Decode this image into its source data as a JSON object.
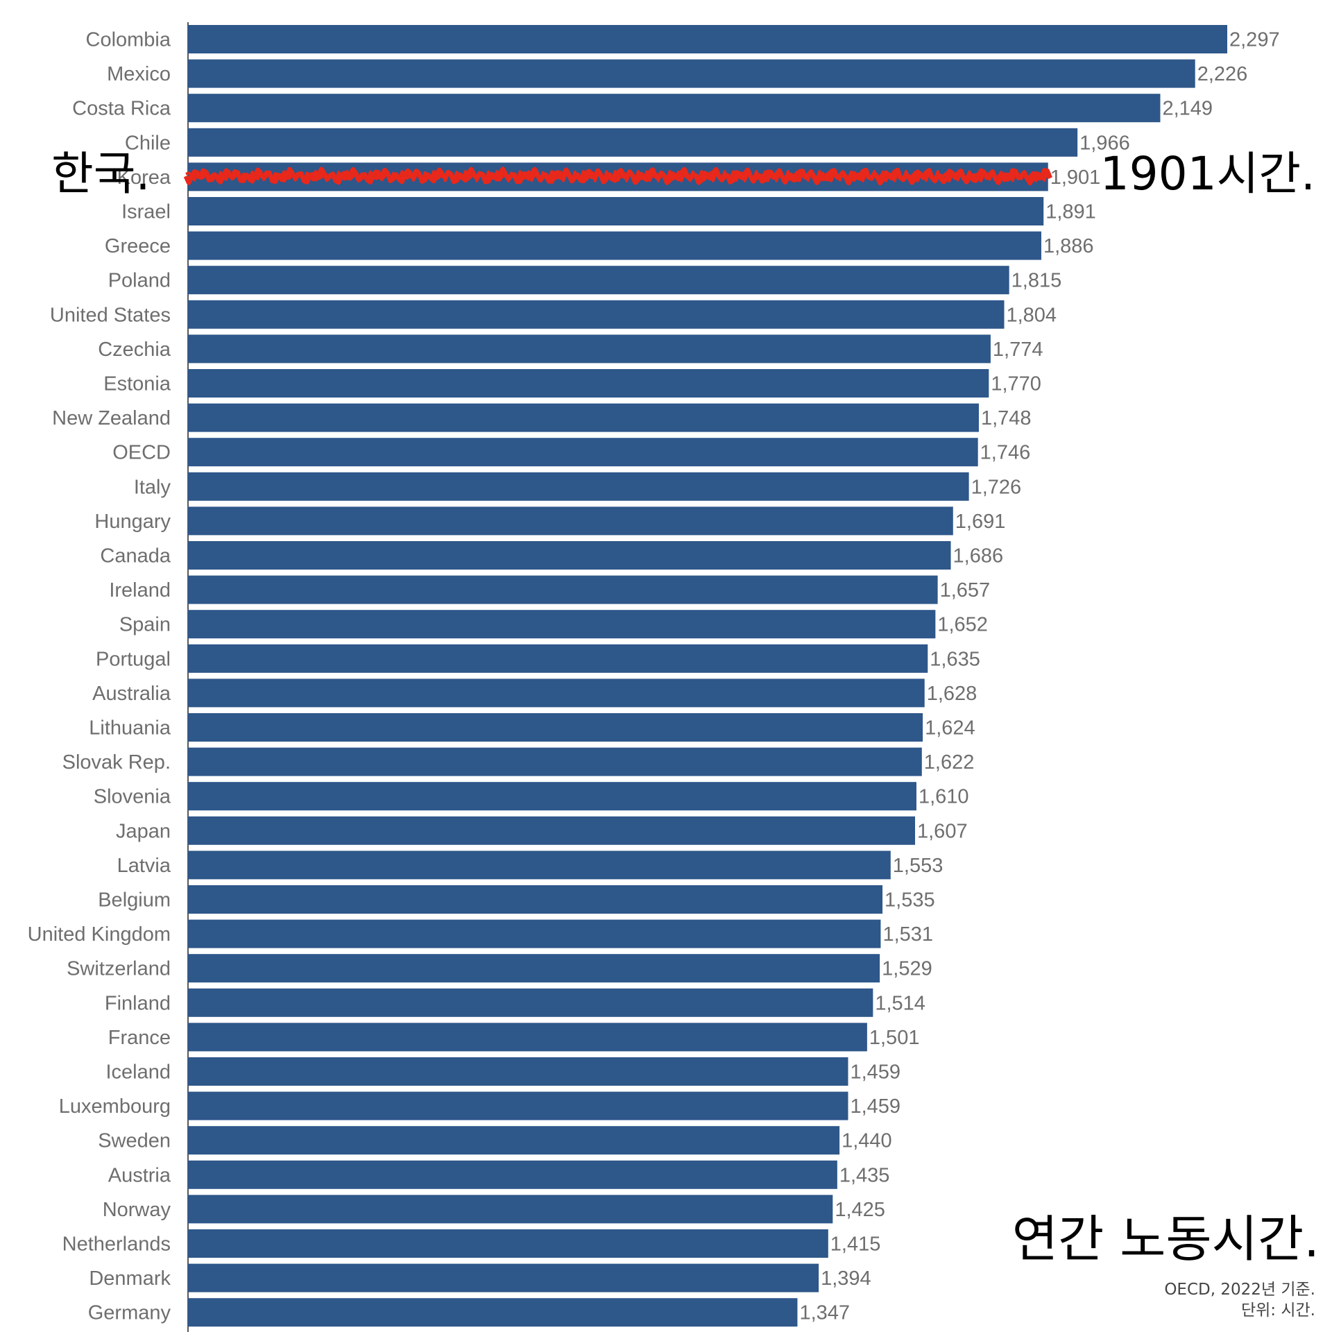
{
  "chart_data": {
    "type": "bar",
    "orientation": "horizontal",
    "title": "연간 노동시간.",
    "xlim": [
      0,
      2400
    ],
    "categories": [
      "Colombia",
      "Mexico",
      "Costa Rica",
      "Chile",
      "Korea",
      "Israel",
      "Greece",
      "Poland",
      "United States",
      "Czechia",
      "Estonia",
      "New Zealand",
      "OECD",
      "Italy",
      "Hungary",
      "Canada",
      "Ireland",
      "Spain",
      "Portugal",
      "Australia",
      "Lithuania",
      "Slovak Rep.",
      "Slovenia",
      "Japan",
      "Latvia",
      "Belgium",
      "United Kingdom",
      "Switzerland",
      "Finland",
      "France",
      "Iceland",
      "Luxembourg",
      "Sweden",
      "Austria",
      "Norway",
      "Netherlands",
      "Denmark",
      "Germany"
    ],
    "values": [
      2297,
      2226,
      2149,
      1966,
      1901,
      1891,
      1886,
      1815,
      1804,
      1774,
      1770,
      1748,
      1746,
      1726,
      1691,
      1686,
      1657,
      1652,
      1635,
      1628,
      1624,
      1622,
      1610,
      1607,
      1553,
      1535,
      1531,
      1529,
      1514,
      1501,
      1459,
      1459,
      1440,
      1435,
      1425,
      1415,
      1394,
      1347
    ],
    "value_labels": [
      "2,297",
      "2,226",
      "2,149",
      "1,966",
      "1,901",
      "1,891",
      "1,886",
      "1,815",
      "1,804",
      "1,774",
      "1,770",
      "1,748",
      "1,746",
      "1,726",
      "1,691",
      "1,686",
      "1,657",
      "1,652",
      "1,635",
      "1,628",
      "1,624",
      "1,622",
      "1,610",
      "1,607",
      "1,553",
      "1,535",
      "1,531",
      "1,529",
      "1,514",
      "1,501",
      "1,459",
      "1,459",
      "1,440",
      "1,435",
      "1,425",
      "1,415",
      "1,394",
      "1,347"
    ],
    "highlight_category": "Korea",
    "highlight_style": "red scribble over bar",
    "grid": false,
    "legend": "none"
  },
  "annotations": {
    "left_label": "한국.",
    "right_label": "1901시간.",
    "title": "연간 노동시간."
  },
  "source": {
    "line1": "OECD, 2022년 기준.",
    "line2": "단위: 시간."
  },
  "colors": {
    "bar": "#2e578a",
    "highlight": "#e8281b",
    "label_text": "#6e6e6e",
    "axis": "#222222",
    "background": "#ffffff"
  }
}
